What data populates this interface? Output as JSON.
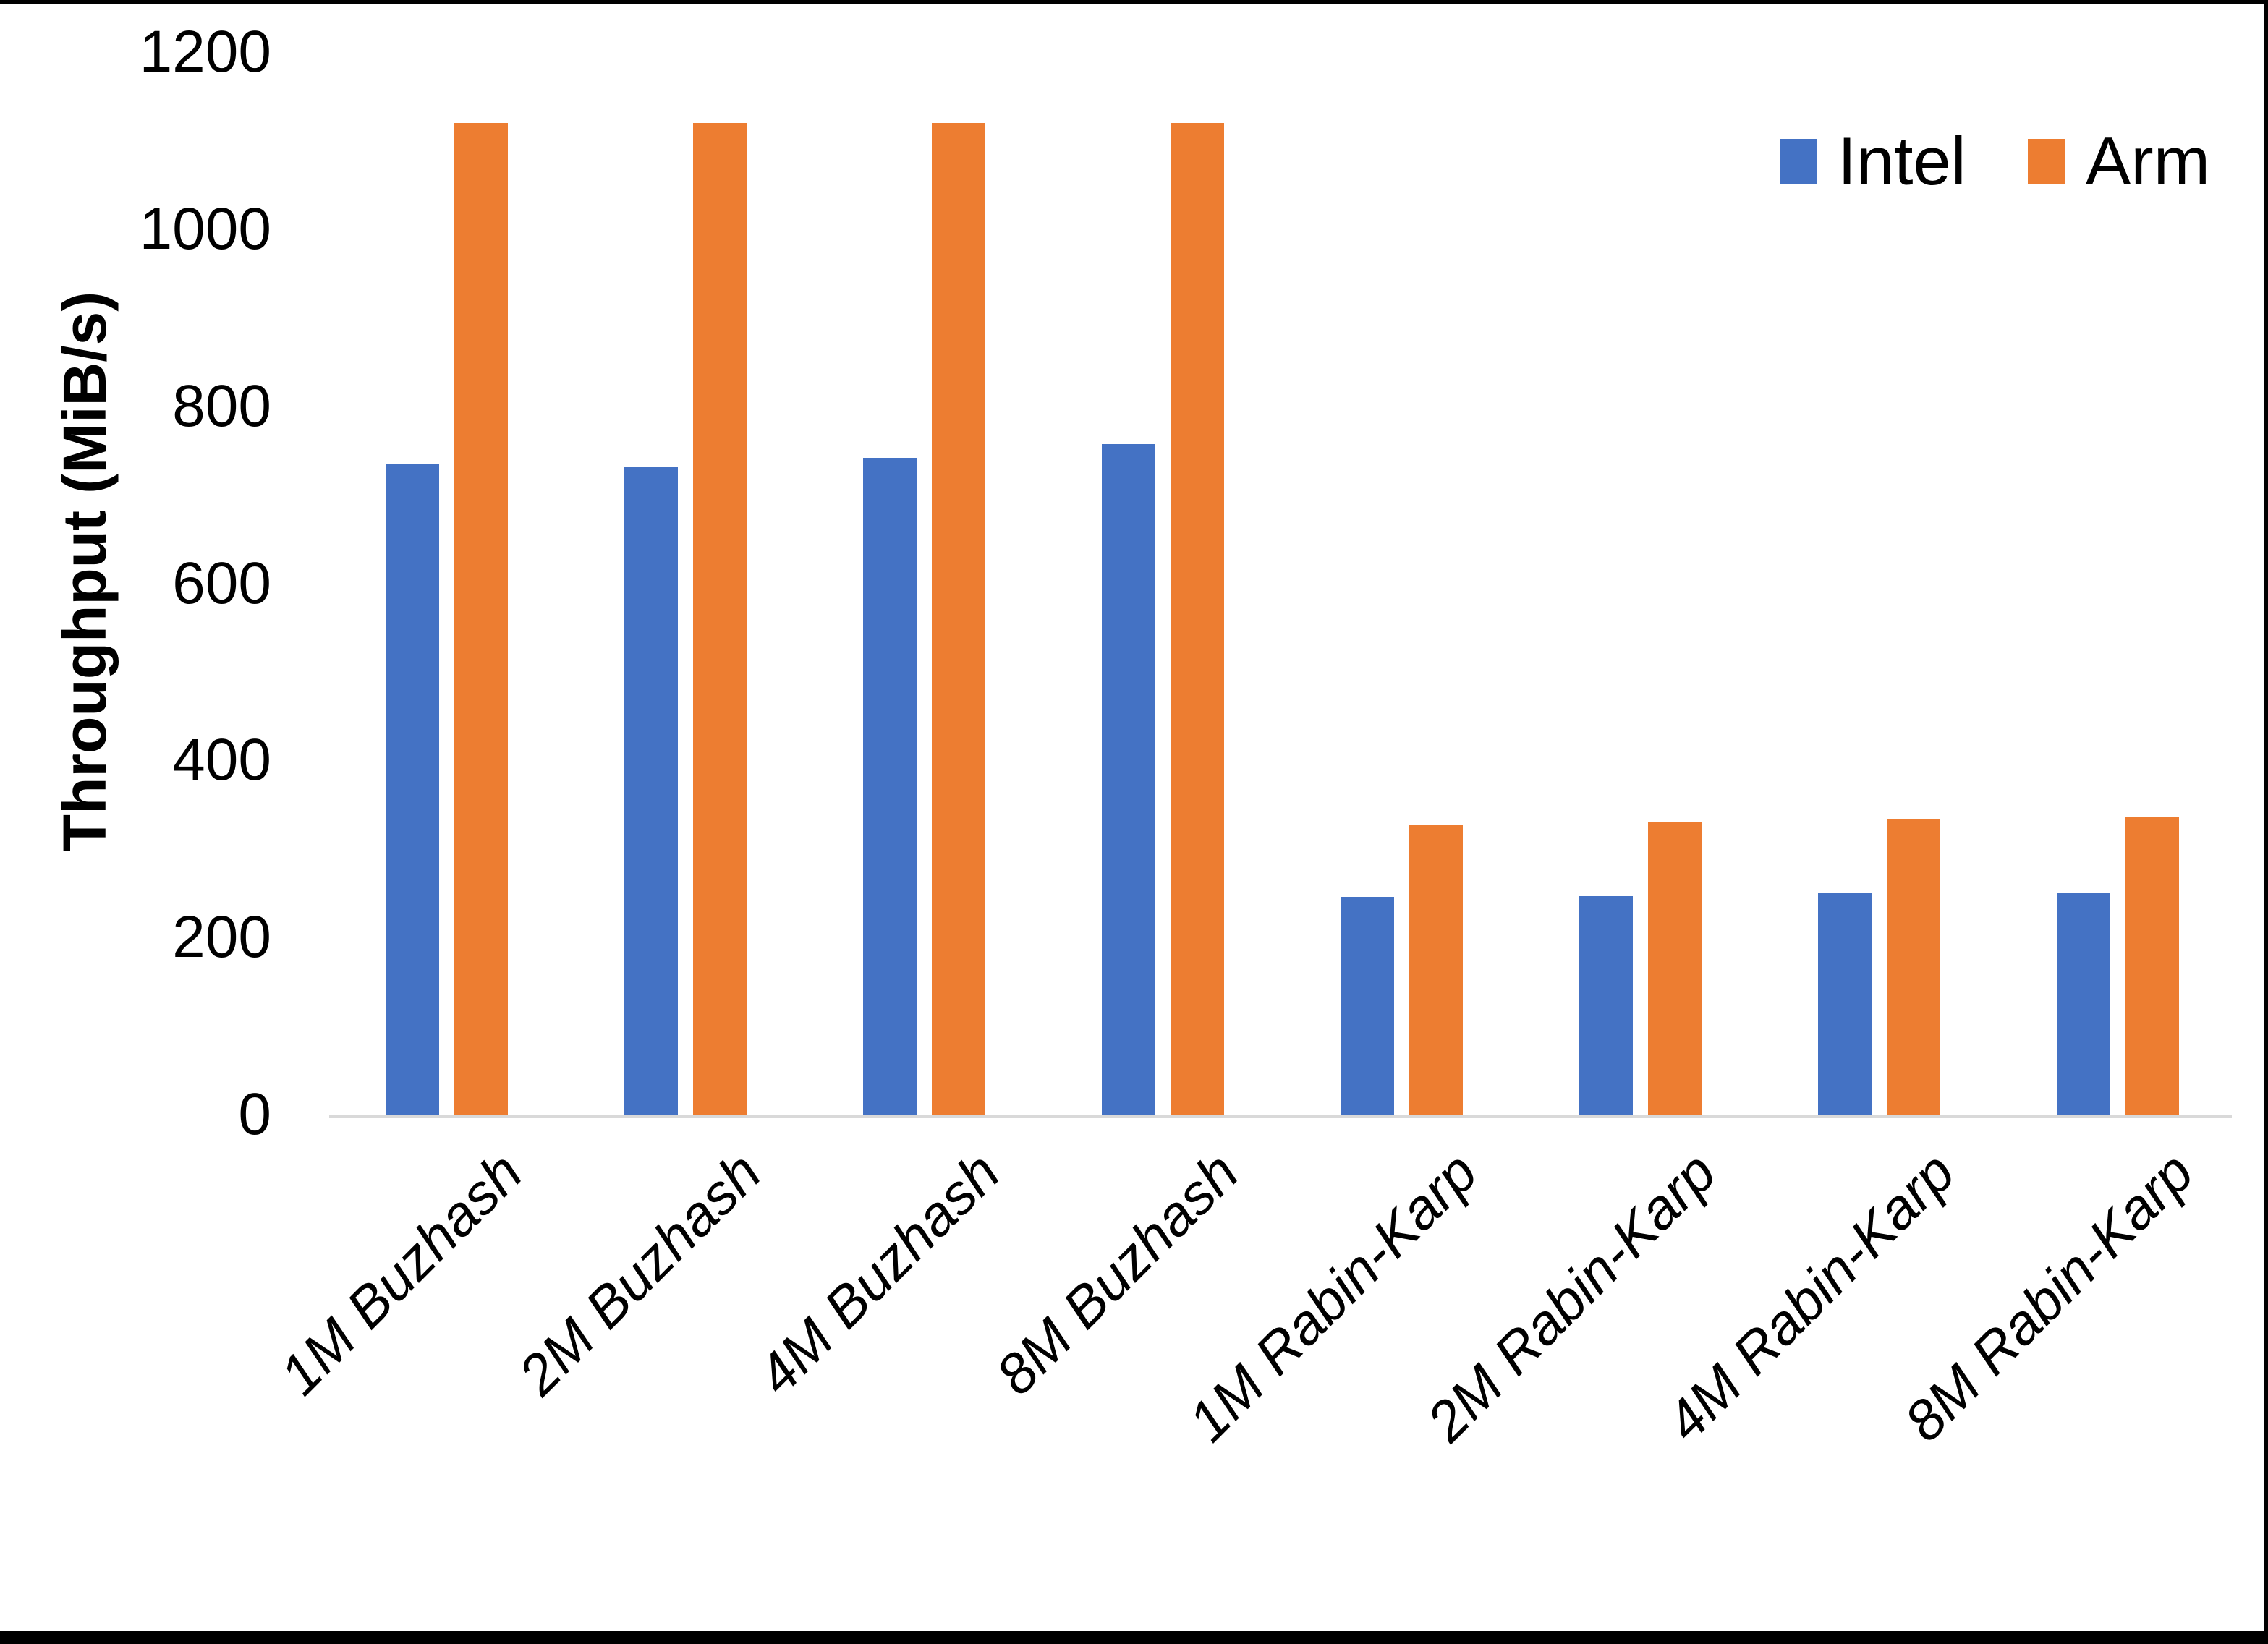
{
  "chart_data": {
    "type": "bar",
    "title": "",
    "xlabel": "",
    "ylabel": "Throughput (MiB/s)",
    "ylim": [
      0,
      1200
    ],
    "y_ticks": [
      0,
      200,
      400,
      600,
      800,
      1000,
      1200
    ],
    "grid": false,
    "legend_position": "top-right",
    "axis_line_color": "#d9d9d9",
    "categories": [
      "1M Buzhash",
      "2M Buzhash",
      "4M Buzhash",
      "8M Buzhash",
      "1M Rabin-Karp",
      "2M Rabin-Karp",
      "4M Rabin-Karp",
      "8M Rabin-Karp"
    ],
    "series": [
      {
        "name": "Intel",
        "color": "#4472C4",
        "values": [
          734,
          732,
          742,
          757,
          246,
          247,
          250,
          251
        ]
      },
      {
        "name": "Arm",
        "color": "#ED7D31",
        "values": [
          1120,
          1120,
          1120,
          1120,
          327,
          330,
          333,
          336
        ]
      }
    ]
  }
}
